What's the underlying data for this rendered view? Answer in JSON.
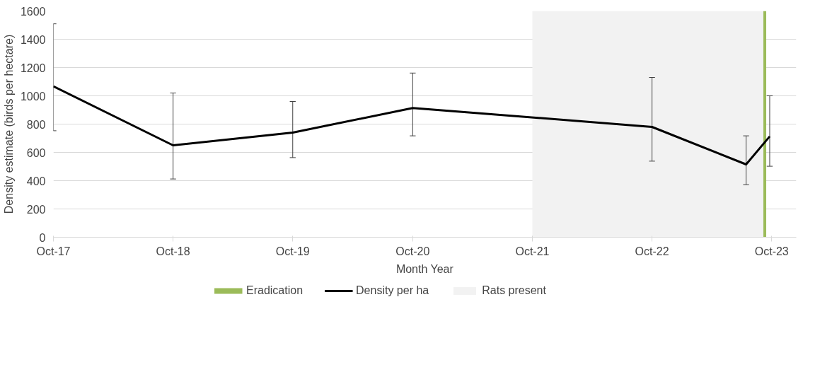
{
  "chart_data": {
    "type": "line",
    "xlabel": "Month Year",
    "ylabel": "Density estimate (birds per hectare)",
    "x": [
      "2017-10-01",
      "2018-10-01",
      "2019-10-01",
      "2020-10-01",
      "2022-10-01",
      "2023-07-15",
      "2023-09-25"
    ],
    "series": [
      {
        "name": "Density per ha",
        "color": "#000000",
        "values": [
          1067,
          650,
          740,
          914,
          780,
          515,
          713
        ],
        "errors": [
          [
            753,
            1509
          ],
          [
            412,
            1020
          ],
          [
            563,
            960
          ],
          [
            717,
            1161
          ],
          [
            538,
            1130
          ],
          [
            372,
            717
          ],
          [
            502,
            1000
          ]
        ]
      }
    ],
    "xlim": [
      "2017-10-01",
      "2023-12-15"
    ],
    "xticks": [
      {
        "value": "2017-10-01",
        "label": "Oct-17"
      },
      {
        "value": "2018-10-01",
        "label": "Oct-18"
      },
      {
        "value": "2019-10-01",
        "label": "Oct-19"
      },
      {
        "value": "2020-10-01",
        "label": "Oct-20"
      },
      {
        "value": "2021-10-01",
        "label": "Oct-21"
      },
      {
        "value": "2022-10-01",
        "label": "Oct-22"
      },
      {
        "value": "2023-10-01",
        "label": "Oct-23"
      }
    ],
    "ylim": [
      0,
      1600
    ],
    "yticks": [
      0,
      200,
      400,
      600,
      800,
      1000,
      1200,
      1400,
      1600
    ],
    "ref_lines": [
      {
        "axis": "x",
        "value": "2023-09-10",
        "label": "Eradication",
        "color": "#9bbb59"
      }
    ],
    "bands": [
      {
        "axis": "x",
        "from": "2021-10-01",
        "to": "2023-09-10",
        "label": "Rats present",
        "color": "#f2f2f2"
      }
    ],
    "grid": "y",
    "legend": "bottom",
    "marker": "none",
    "line_style": "solid"
  }
}
